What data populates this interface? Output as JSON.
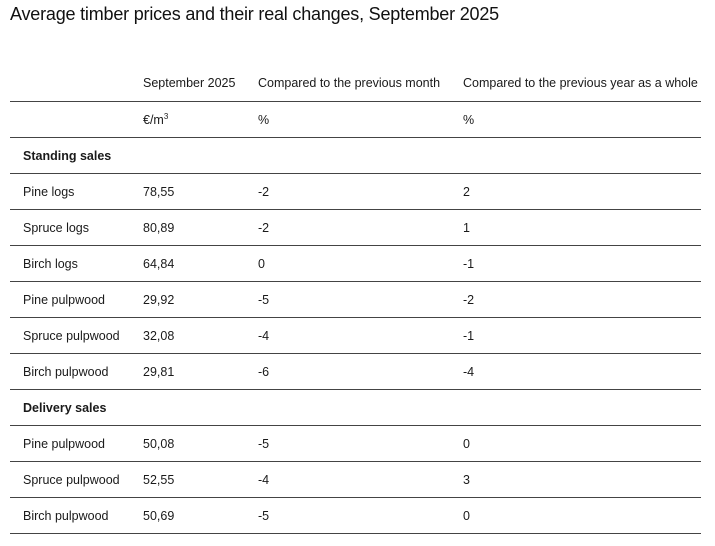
{
  "title": "Average timber prices and their real changes, September 2025",
  "columns": [
    "",
    "September 2025",
    "Compared to the previous month",
    "Compared to the previous year as a whole"
  ],
  "units": [
    "",
    "€/m",
    "%",
    "%"
  ],
  "unit_superscript": "3",
  "groups": [
    {
      "label": "Standing sales",
      "rows": [
        [
          "Pine logs",
          "78,55",
          "-2",
          "2"
        ],
        [
          "Spruce logs",
          "80,89",
          "-2",
          "1"
        ],
        [
          "Birch logs",
          "64,84",
          "0",
          "-1"
        ],
        [
          "Pine pulpwood",
          "29,92",
          "-5",
          "-2"
        ],
        [
          "Spruce pulpwood",
          "32,08",
          "-4",
          "-1"
        ],
        [
          "Birch pulpwood",
          "29,81",
          "-6",
          "-4"
        ]
      ]
    },
    {
      "label": "Delivery sales",
      "rows": [
        [
          "Pine pulpwood",
          "50,08",
          "-5",
          "0"
        ],
        [
          "Spruce pulpwood",
          "52,55",
          "-4",
          "3"
        ],
        [
          "Birch pulpwood",
          "50,69",
          "-5",
          "0"
        ]
      ]
    }
  ]
}
